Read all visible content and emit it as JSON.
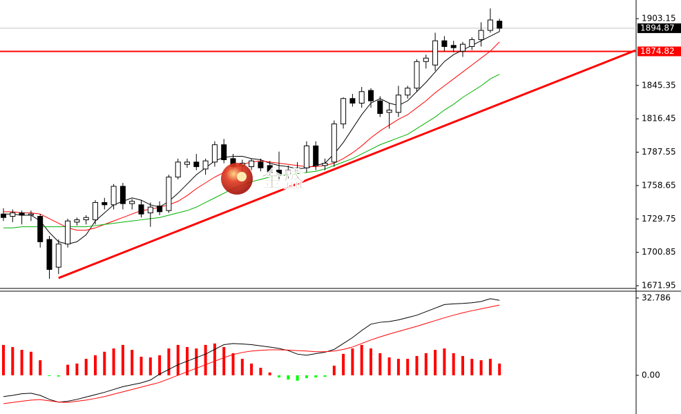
{
  "chart_data": [
    {
      "type": "candlestick",
      "open": [
        1734,
        1732,
        1735,
        1733,
        1732,
        1712,
        1688,
        1708,
        1727,
        1729,
        1729,
        1744,
        1742,
        1758,
        1743,
        1742,
        1735,
        1741,
        1737,
        1766,
        1777,
        1779,
        1773,
        1779,
        1794,
        1782,
        1776,
        1775,
        1779,
        1776,
        1772,
        1768,
        1772,
        1774,
        1793,
        1776,
        1779,
        1812,
        1834,
        1830,
        1841,
        1832,
        1822,
        1822,
        1837,
        1843,
        1866,
        1863,
        1884,
        1880,
        1875,
        1879,
        1885,
        1893,
        1901
      ],
      "high": [
        1739,
        1738,
        1737,
        1737,
        1734,
        1715,
        1712,
        1730,
        1731,
        1733,
        1746,
        1748,
        1760,
        1761,
        1747,
        1746,
        1744,
        1745,
        1768,
        1782,
        1782,
        1786,
        1782,
        1797,
        1799,
        1786,
        1781,
        1782,
        1782,
        1780,
        1788,
        1776,
        1779,
        1797,
        1797,
        1782,
        1815,
        1835,
        1838,
        1844,
        1843,
        1836,
        1830,
        1845,
        1845,
        1868,
        1872,
        1891,
        1888,
        1884,
        1883,
        1887,
        1900,
        1912,
        1903
      ],
      "low": [
        1728,
        1727,
        1725,
        1728,
        1705,
        1678,
        1682,
        1705,
        1724,
        1725,
        1725,
        1738,
        1738,
        1738,
        1738,
        1731,
        1723,
        1733,
        1735,
        1764,
        1774,
        1772,
        1768,
        1775,
        1778,
        1772,
        1770,
        1772,
        1771,
        1766,
        1762,
        1764,
        1769,
        1770,
        1772,
        1772,
        1775,
        1808,
        1827,
        1826,
        1826,
        1818,
        1808,
        1818,
        1834,
        1840,
        1860,
        1858,
        1875,
        1874,
        1870,
        1876,
        1879,
        1891,
        1892
      ],
      "close": [
        1731,
        1735,
        1733,
        1734,
        1710,
        1686,
        1708,
        1728,
        1729,
        1731,
        1744,
        1742,
        1758,
        1743,
        1745,
        1734,
        1740,
        1736,
        1766,
        1779,
        1779,
        1775,
        1780,
        1794,
        1781,
        1775,
        1778,
        1780,
        1774,
        1770,
        1768,
        1772,
        1774,
        1793,
        1776,
        1778,
        1812,
        1834,
        1830,
        1840,
        1832,
        1821,
        1824,
        1837,
        1843,
        1866,
        1869,
        1884,
        1879,
        1878,
        1881,
        1885,
        1893,
        1902,
        1894.87
      ],
      "series": [
        {
          "color": "#000000",
          "values": [
            1734,
            1734,
            1733,
            1733,
            1728,
            1718,
            1710,
            1708,
            1710,
            1716,
            1728,
            1735,
            1742,
            1745,
            1748,
            1746,
            1742,
            1740,
            1745,
            1752,
            1760,
            1768,
            1774,
            1780,
            1783,
            1784,
            1784,
            1782,
            1781,
            1778,
            1776,
            1775,
            1773,
            1774,
            1776,
            1778,
            1786,
            1796,
            1808,
            1820,
            1830,
            1834,
            1830,
            1828,
            1832,
            1840,
            1848,
            1857,
            1866,
            1872,
            1876,
            1880,
            1884,
            1888,
            1892
          ]
        },
        {
          "color": "#ff0000",
          "values": [
            1736,
            1736,
            1735,
            1735,
            1734,
            1730,
            1726,
            1722,
            1720,
            1720,
            1722,
            1725,
            1728,
            1731,
            1734,
            1737,
            1738,
            1740,
            1742,
            1745,
            1750,
            1756,
            1761,
            1766,
            1770,
            1774,
            1777,
            1779,
            1780,
            1779,
            1778,
            1777,
            1776,
            1775,
            1775,
            1776,
            1778,
            1782,
            1787,
            1793,
            1800,
            1806,
            1811,
            1816,
            1820,
            1826,
            1832,
            1839,
            1845,
            1851,
            1857,
            1863,
            1869,
            1875,
            1883
          ]
        },
        {
          "color": "#00b000",
          "values": [
            1722,
            1722,
            1723,
            1723,
            1723,
            1723,
            1723,
            1723,
            1723,
            1723,
            1724,
            1725,
            1726,
            1727,
            1728,
            1729,
            1730,
            1731,
            1733,
            1735,
            1737,
            1740,
            1744,
            1748,
            1752,
            1756,
            1759,
            1762,
            1764,
            1766,
            1767,
            1768,
            1769,
            1770,
            1771,
            1773,
            1776,
            1779,
            1782,
            1786,
            1790,
            1794,
            1797,
            1800,
            1803,
            1808,
            1813,
            1818,
            1824,
            1829,
            1835,
            1840,
            1845,
            1851,
            1855
          ]
        }
      ],
      "up_color": "#ffffff",
      "down_color": "#000000",
      "ylim": [
        1669.6,
        1919.3
      ],
      "yticks": [
        1903.15,
        1845.35,
        1816.45,
        1787.55,
        1758.65,
        1729.75,
        1700.85,
        1671.95
      ],
      "hlines": [
        {
          "value": 1894.87,
          "color": "#c0c0c0",
          "box": "#000000"
        },
        {
          "value": 1874.82,
          "color": "#ff0000",
          "box": "#ff0000"
        }
      ],
      "trendline": {
        "x": [
          6,
          68.8
        ],
        "y": [
          1678.6,
          1875.7
        ],
        "color": "#ff0000"
      },
      "watermark": "金盛"
    },
    {
      "type": "macd",
      "values": [
        12.9,
        12,
        10.8,
        10,
        6.4,
        -0.3,
        -0.5,
        4.5,
        5,
        7,
        8.5,
        10,
        11.4,
        12.9,
        10.8,
        7.9,
        7.6,
        8.5,
        11.4,
        12.9,
        12,
        11.4,
        12.9,
        13.5,
        12,
        9.4,
        7,
        5,
        3.2,
        1.2,
        -0.9,
        -1.8,
        -2.3,
        -1.2,
        -0.9,
        -0.6,
        4.1,
        9.1,
        11.4,
        12.9,
        11.4,
        9.4,
        7.6,
        7,
        7,
        8.2,
        9.4,
        10.8,
        11.4,
        9.4,
        8.2,
        7,
        6.4,
        7,
        5
      ],
      "positive_color": "#ff0000",
      "negative_color": "#00ff00",
      "series": [
        {
          "color": "#000000",
          "values": [
            -9,
            -8.5,
            -7.8,
            -7.6,
            -8.5,
            -10.2,
            -11.4,
            -11,
            -10.2,
            -9.2,
            -8.2,
            -7.2,
            -6,
            -4.8,
            -4,
            -3.2,
            -2,
            0.5,
            2.5,
            4.5,
            6,
            7.5,
            9,
            11,
            13,
            13.5,
            13.3,
            13,
            12.5,
            12,
            11.4,
            10.5,
            9,
            8.5,
            9.2,
            9.8,
            11,
            13.5,
            16,
            19,
            21.7,
            22.5,
            22.8,
            23.5,
            24.5,
            25.5,
            27,
            28.5,
            30,
            30.3,
            30.5,
            30.8,
            31.3,
            32.5,
            31.8
          ]
        },
        {
          "color": "#ff0000",
          "values": [
            -12,
            -11.5,
            -11,
            -10.5,
            -10.3,
            -10.8,
            -11.3,
            -11.5,
            -11,
            -10.5,
            -9.8,
            -9,
            -8,
            -7,
            -6,
            -5,
            -4,
            -3,
            -1.5,
            0,
            1.5,
            3,
            4.5,
            6,
            7.5,
            8.8,
            9.7,
            10.3,
            10.6,
            10.8,
            10.8,
            10.7,
            10.5,
            10.3,
            10,
            10,
            10.3,
            11,
            12,
            13.5,
            15,
            16.3,
            17.5,
            18.6,
            19.7,
            20.8,
            22,
            23.2,
            24.4,
            25.5,
            26.5,
            27.4,
            28.2,
            29,
            29.8
          ]
        }
      ],
      "ylim": [
        -16.4,
        35.1
      ],
      "yticks": [
        32.786,
        {
          "value": 0,
          "label": "0.00"
        }
      ]
    }
  ]
}
